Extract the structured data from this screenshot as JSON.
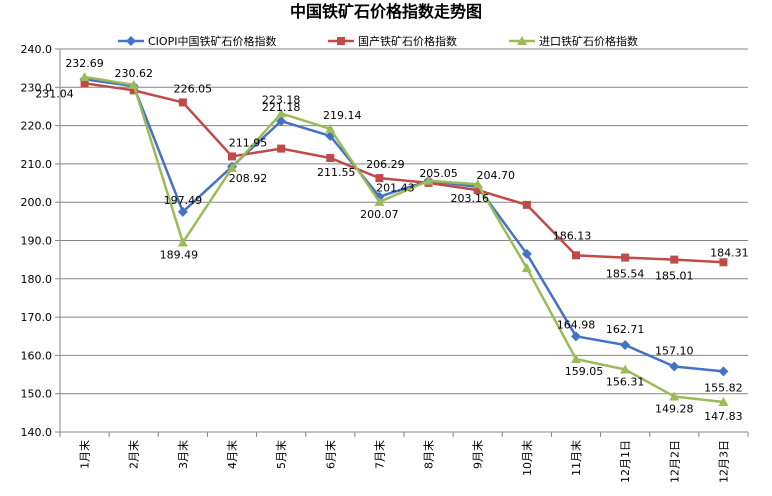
{
  "chart_data": {
    "type": "line",
    "title": "中国铁矿石价格指数走势图",
    "categories": [
      "1月末",
      "2月末",
      "3月末",
      "4月末",
      "5月末",
      "6月末",
      "7月末",
      "8月末",
      "9月末",
      "10月末",
      "11月末",
      "12月1日",
      "12月2日",
      "12月3日"
    ],
    "ylim": [
      140,
      240
    ],
    "yticks": [
      "140.0",
      "150.0",
      "160.0",
      "170.0",
      "180.0",
      "190.0",
      "200.0",
      "210.0",
      "220.0",
      "230.0",
      "240.0"
    ],
    "grid": true,
    "legend_position": "top",
    "series": [
      {
        "name": "CIOPI中国铁矿石价格指数",
        "color": "#4472C4",
        "marker": "diamond",
        "values": [
          232.1,
          230.3,
          197.49,
          209.3,
          221.18,
          217.3,
          201.43,
          205.6,
          204.0,
          186.5,
          164.98,
          162.71,
          157.1,
          155.82
        ]
      },
      {
        "name": "国产铁矿石价格指数",
        "color": "#BE4B48",
        "marker": "square",
        "values": [
          231.04,
          229.2,
          226.05,
          211.95,
          214.0,
          211.55,
          206.29,
          205.05,
          203.16,
          199.3,
          186.13,
          185.54,
          185.01,
          184.31
        ]
      },
      {
        "name": "进口铁矿石价格指数",
        "color": "#9BBB59",
        "marker": "triangle",
        "values": [
          232.69,
          230.62,
          189.49,
          208.92,
          223.18,
          219.14,
          200.07,
          205.6,
          204.7,
          182.8,
          159.05,
          156.31,
          149.28,
          147.83
        ]
      }
    ],
    "data_labels": [
      {
        "text": "232.69",
        "series": 2,
        "index": 0
      },
      {
        "text": "231.04",
        "series": 1,
        "index": 0
      },
      {
        "text": "230.62",
        "series": 2,
        "index": 1
      },
      {
        "text": "226.05",
        "series": 1,
        "index": 2
      },
      {
        "text": "197.49",
        "series": 0,
        "index": 2
      },
      {
        "text": "189.49",
        "series": 2,
        "index": 2
      },
      {
        "text": "211.95",
        "series": 1,
        "index": 3
      },
      {
        "text": "208.92",
        "series": 2,
        "index": 3
      },
      {
        "text": "223.18",
        "series": 2,
        "index": 4
      },
      {
        "text": "221.18",
        "series": 0,
        "index": 4
      },
      {
        "text": "219.14",
        "series": 2,
        "index": 5
      },
      {
        "text": "211.55",
        "series": 1,
        "index": 5
      },
      {
        "text": "206.29",
        "series": 1,
        "index": 6
      },
      {
        "text": "201.43",
        "series": 0,
        "index": 6
      },
      {
        "text": "200.07",
        "series": 2,
        "index": 6
      },
      {
        "text": "205.05",
        "series": 1,
        "index": 7
      },
      {
        "text": "204.70",
        "series": 2,
        "index": 8
      },
      {
        "text": "203.16",
        "series": 1,
        "index": 8
      },
      {
        "text": "186.13",
        "series": 1,
        "index": 10
      },
      {
        "text": "164.98",
        "series": 0,
        "index": 10
      },
      {
        "text": "159.05",
        "series": 2,
        "index": 10
      },
      {
        "text": "185.54",
        "series": 1,
        "index": 11
      },
      {
        "text": "162.71",
        "series": 0,
        "index": 11
      },
      {
        "text": "156.31",
        "series": 2,
        "index": 11
      },
      {
        "text": "185.01",
        "series": 1,
        "index": 12
      },
      {
        "text": "157.10",
        "series": 0,
        "index": 12
      },
      {
        "text": "149.28",
        "series": 2,
        "index": 12
      },
      {
        "text": "184.31",
        "series": 1,
        "index": 13
      },
      {
        "text": "155.82",
        "series": 0,
        "index": 13
      },
      {
        "text": "147.83",
        "series": 2,
        "index": 13
      }
    ]
  }
}
